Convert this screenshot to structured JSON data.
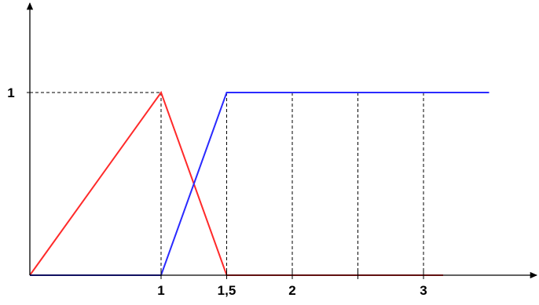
{
  "chart_data": {
    "type": "line",
    "title": "",
    "xlabel": "",
    "ylabel": "",
    "xlim": [
      0,
      3.9
    ],
    "ylim": [
      0,
      1.4
    ],
    "x_tick_labels": [
      {
        "value": 1,
        "label": "1"
      },
      {
        "value": 1.5,
        "label": "1,5"
      },
      {
        "value": 2,
        "label": "2"
      },
      {
        "value": 3,
        "label": "3"
      }
    ],
    "y_tick_labels": [
      {
        "value": 1,
        "label": "1"
      }
    ],
    "x_minor_ticks": [
      2.5
    ],
    "vertical_dashed_guides": [
      1,
      1.5,
      2,
      2.5,
      3
    ],
    "horizontal_dashed_guides": [
      1
    ],
    "series": [
      {
        "color": "#ff2a2a",
        "points": [
          [
            0,
            0
          ],
          [
            1,
            1
          ],
          [
            1.5,
            0
          ],
          [
            3.15,
            0
          ]
        ]
      },
      {
        "color": "#2a2aff",
        "points": [
          [
            0,
            0
          ],
          [
            1,
            0
          ],
          [
            1.5,
            1
          ],
          [
            3.5,
            1
          ]
        ]
      }
    ],
    "axis_color": "#000000",
    "grid": false,
    "legend": "none"
  }
}
